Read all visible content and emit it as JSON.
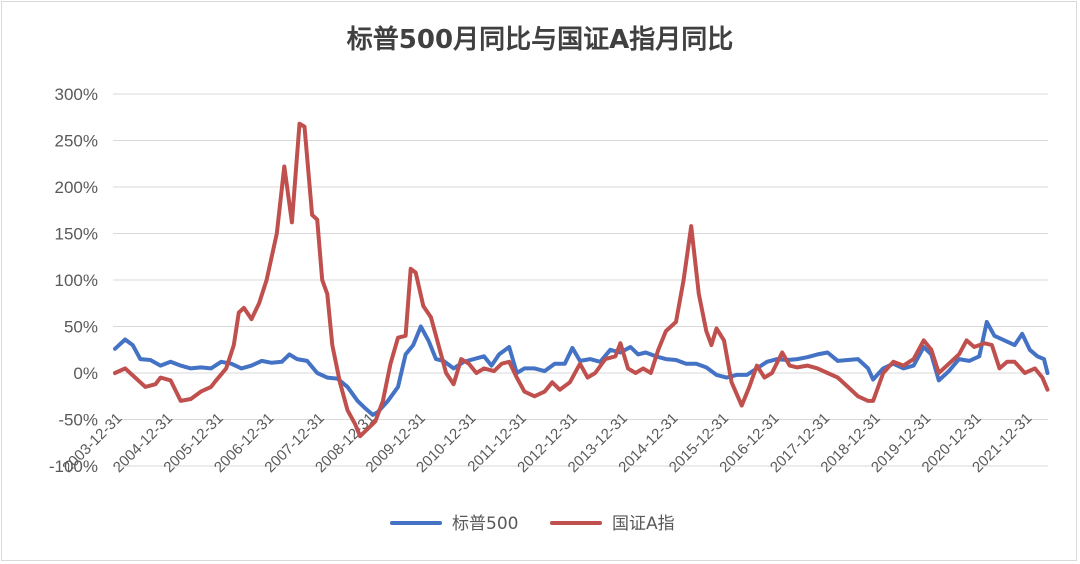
{
  "chart_data": {
    "type": "line",
    "title": "标普500月同比与国证A指月同比",
    "xlabel": "",
    "ylabel": "",
    "ylim": [
      -1.0,
      3.0
    ],
    "yticks": [
      -1.0,
      -0.5,
      0.0,
      0.5,
      1.0,
      1.5,
      2.0,
      2.5,
      3.0
    ],
    "ytick_labels": [
      "-100%",
      "-50%",
      "0%",
      "50%",
      "100%",
      "150%",
      "200%",
      "250%",
      "300%"
    ],
    "xlim": [
      2003.96,
      2022.46
    ],
    "x_tick_labels": [
      "2003-12-31",
      "2004-12-31",
      "2005-12-31",
      "2006-12-31",
      "2007-12-31",
      "2008-12-31",
      "2009-12-31",
      "2010-12-31",
      "2011-12-31",
      "2012-12-31",
      "2013-12-31",
      "2014-12-31",
      "2015-12-31",
      "2016-12-31",
      "2017-12-31",
      "2018-12-31",
      "2019-12-31",
      "2020-12-31",
      "2021-12-31"
    ],
    "grid": true,
    "legend_position": "bottom",
    "series": [
      {
        "name": "标普500",
        "color": "#4472C4",
        "points": [
          [
            2004.0,
            0.26
          ],
          [
            2004.2,
            0.36
          ],
          [
            2004.35,
            0.3
          ],
          [
            2004.5,
            0.15
          ],
          [
            2004.7,
            0.14
          ],
          [
            2004.9,
            0.08
          ],
          [
            2005.1,
            0.12
          ],
          [
            2005.3,
            0.08
          ],
          [
            2005.5,
            0.05
          ],
          [
            2005.7,
            0.06
          ],
          [
            2005.9,
            0.05
          ],
          [
            2006.1,
            0.12
          ],
          [
            2006.3,
            0.1
          ],
          [
            2006.5,
            0.05
          ],
          [
            2006.7,
            0.08
          ],
          [
            2006.9,
            0.13
          ],
          [
            2007.1,
            0.11
          ],
          [
            2007.3,
            0.12
          ],
          [
            2007.45,
            0.2
          ],
          [
            2007.6,
            0.15
          ],
          [
            2007.8,
            0.13
          ],
          [
            2008.0,
            0.0
          ],
          [
            2008.2,
            -0.05
          ],
          [
            2008.4,
            -0.06
          ],
          [
            2008.6,
            -0.15
          ],
          [
            2008.8,
            -0.3
          ],
          [
            2008.95,
            -0.38
          ],
          [
            2009.1,
            -0.45
          ],
          [
            2009.2,
            -0.42
          ],
          [
            2009.4,
            -0.3
          ],
          [
            2009.6,
            -0.15
          ],
          [
            2009.75,
            0.2
          ],
          [
            2009.9,
            0.3
          ],
          [
            2010.05,
            0.5
          ],
          [
            2010.2,
            0.35
          ],
          [
            2010.35,
            0.15
          ],
          [
            2010.5,
            0.13
          ],
          [
            2010.7,
            0.05
          ],
          [
            2010.9,
            0.12
          ],
          [
            2011.1,
            0.15
          ],
          [
            2011.3,
            0.18
          ],
          [
            2011.45,
            0.08
          ],
          [
            2011.6,
            0.2
          ],
          [
            2011.8,
            0.28
          ],
          [
            2011.95,
            0.0
          ],
          [
            2012.1,
            0.05
          ],
          [
            2012.3,
            0.05
          ],
          [
            2012.5,
            0.02
          ],
          [
            2012.7,
            0.1
          ],
          [
            2012.9,
            0.1
          ],
          [
            2013.05,
            0.27
          ],
          [
            2013.2,
            0.13
          ],
          [
            2013.4,
            0.15
          ],
          [
            2013.6,
            0.12
          ],
          [
            2013.8,
            0.25
          ],
          [
            2014.0,
            0.22
          ],
          [
            2014.2,
            0.28
          ],
          [
            2014.35,
            0.2
          ],
          [
            2014.5,
            0.22
          ],
          [
            2014.7,
            0.18
          ],
          [
            2014.9,
            0.15
          ],
          [
            2015.1,
            0.14
          ],
          [
            2015.3,
            0.1
          ],
          [
            2015.5,
            0.1
          ],
          [
            2015.7,
            0.06
          ],
          [
            2015.9,
            -0.02
          ],
          [
            2016.1,
            -0.05
          ],
          [
            2016.3,
            -0.02
          ],
          [
            2016.5,
            -0.02
          ],
          [
            2016.7,
            0.05
          ],
          [
            2016.9,
            0.12
          ],
          [
            2017.1,
            0.15
          ],
          [
            2017.3,
            0.14
          ],
          [
            2017.5,
            0.15
          ],
          [
            2017.7,
            0.17
          ],
          [
            2017.9,
            0.2
          ],
          [
            2018.1,
            0.22
          ],
          [
            2018.3,
            0.13
          ],
          [
            2018.5,
            0.14
          ],
          [
            2018.7,
            0.15
          ],
          [
            2018.9,
            0.05
          ],
          [
            2019.0,
            -0.07
          ],
          [
            2019.2,
            0.05
          ],
          [
            2019.4,
            0.1
          ],
          [
            2019.6,
            0.05
          ],
          [
            2019.8,
            0.08
          ],
          [
            2020.0,
            0.28
          ],
          [
            2020.15,
            0.2
          ],
          [
            2020.3,
            -0.08
          ],
          [
            2020.5,
            0.02
          ],
          [
            2020.7,
            0.15
          ],
          [
            2020.9,
            0.13
          ],
          [
            2021.1,
            0.18
          ],
          [
            2021.25,
            0.55
          ],
          [
            2021.4,
            0.4
          ],
          [
            2021.6,
            0.35
          ],
          [
            2021.8,
            0.3
          ],
          [
            2021.95,
            0.42
          ],
          [
            2022.1,
            0.25
          ],
          [
            2022.25,
            0.18
          ],
          [
            2022.38,
            0.15
          ],
          [
            2022.45,
            0.0
          ]
        ]
      },
      {
        "name": "国证A指",
        "color": "#C0504D",
        "points": [
          [
            2004.0,
            0.0
          ],
          [
            2004.2,
            0.05
          ],
          [
            2004.4,
            -0.05
          ],
          [
            2004.6,
            -0.15
          ],
          [
            2004.8,
            -0.12
          ],
          [
            2004.9,
            -0.05
          ],
          [
            2005.1,
            -0.08
          ],
          [
            2005.3,
            -0.3
          ],
          [
            2005.5,
            -0.28
          ],
          [
            2005.7,
            -0.2
          ],
          [
            2005.9,
            -0.15
          ],
          [
            2006.0,
            -0.08
          ],
          [
            2006.2,
            0.05
          ],
          [
            2006.35,
            0.3
          ],
          [
            2006.45,
            0.65
          ],
          [
            2006.55,
            0.7
          ],
          [
            2006.7,
            0.58
          ],
          [
            2006.85,
            0.75
          ],
          [
            2007.0,
            1.0
          ],
          [
            2007.2,
            1.5
          ],
          [
            2007.35,
            2.22
          ],
          [
            2007.5,
            1.62
          ],
          [
            2007.65,
            2.68
          ],
          [
            2007.75,
            2.65
          ],
          [
            2007.9,
            1.7
          ],
          [
            2008.0,
            1.65
          ],
          [
            2008.1,
            1.0
          ],
          [
            2008.2,
            0.85
          ],
          [
            2008.3,
            0.3
          ],
          [
            2008.45,
            -0.1
          ],
          [
            2008.6,
            -0.4
          ],
          [
            2008.75,
            -0.55
          ],
          [
            2008.85,
            -0.68
          ],
          [
            2009.0,
            -0.6
          ],
          [
            2009.15,
            -0.52
          ],
          [
            2009.3,
            -0.3
          ],
          [
            2009.45,
            0.1
          ],
          [
            2009.6,
            0.38
          ],
          [
            2009.75,
            0.4
          ],
          [
            2009.85,
            1.12
          ],
          [
            2009.95,
            1.08
          ],
          [
            2010.1,
            0.72
          ],
          [
            2010.25,
            0.6
          ],
          [
            2010.4,
            0.3
          ],
          [
            2010.55,
            0.0
          ],
          [
            2010.7,
            -0.12
          ],
          [
            2010.85,
            0.15
          ],
          [
            2011.0,
            0.1
          ],
          [
            2011.15,
            0.0
          ],
          [
            2011.3,
            0.05
          ],
          [
            2011.5,
            0.02
          ],
          [
            2011.65,
            0.1
          ],
          [
            2011.8,
            0.12
          ],
          [
            2011.95,
            -0.05
          ],
          [
            2012.1,
            -0.2
          ],
          [
            2012.3,
            -0.25
          ],
          [
            2012.5,
            -0.2
          ],
          [
            2012.65,
            -0.1
          ],
          [
            2012.8,
            -0.18
          ],
          [
            2013.0,
            -0.1
          ],
          [
            2013.2,
            0.1
          ],
          [
            2013.35,
            -0.05
          ],
          [
            2013.5,
            0.0
          ],
          [
            2013.7,
            0.15
          ],
          [
            2013.9,
            0.18
          ],
          [
            2014.0,
            0.32
          ],
          [
            2014.15,
            0.05
          ],
          [
            2014.3,
            0.0
          ],
          [
            2014.45,
            0.05
          ],
          [
            2014.6,
            0.0
          ],
          [
            2014.75,
            0.25
          ],
          [
            2014.9,
            0.45
          ],
          [
            2015.1,
            0.55
          ],
          [
            2015.25,
            1.0
          ],
          [
            2015.4,
            1.58
          ],
          [
            2015.55,
            0.85
          ],
          [
            2015.7,
            0.45
          ],
          [
            2015.8,
            0.3
          ],
          [
            2015.9,
            0.48
          ],
          [
            2016.05,
            0.35
          ],
          [
            2016.2,
            -0.1
          ],
          [
            2016.4,
            -0.35
          ],
          [
            2016.55,
            -0.15
          ],
          [
            2016.7,
            0.08
          ],
          [
            2016.85,
            -0.05
          ],
          [
            2017.0,
            0.0
          ],
          [
            2017.2,
            0.22
          ],
          [
            2017.35,
            0.08
          ],
          [
            2017.5,
            0.06
          ],
          [
            2017.7,
            0.08
          ],
          [
            2017.9,
            0.05
          ],
          [
            2018.1,
            0.0
          ],
          [
            2018.3,
            -0.05
          ],
          [
            2018.5,
            -0.15
          ],
          [
            2018.7,
            -0.25
          ],
          [
            2018.9,
            -0.3
          ],
          [
            2019.0,
            -0.3
          ],
          [
            2019.2,
            0.0
          ],
          [
            2019.4,
            0.12
          ],
          [
            2019.6,
            0.08
          ],
          [
            2019.8,
            0.15
          ],
          [
            2020.0,
            0.35
          ],
          [
            2020.15,
            0.25
          ],
          [
            2020.3,
            0.0
          ],
          [
            2020.5,
            0.1
          ],
          [
            2020.7,
            0.2
          ],
          [
            2020.85,
            0.35
          ],
          [
            2021.0,
            0.28
          ],
          [
            2021.2,
            0.32
          ],
          [
            2021.35,
            0.3
          ],
          [
            2021.5,
            0.05
          ],
          [
            2021.65,
            0.12
          ],
          [
            2021.8,
            0.12
          ],
          [
            2022.0,
            0.0
          ],
          [
            2022.2,
            0.05
          ],
          [
            2022.35,
            -0.05
          ],
          [
            2022.45,
            -0.18
          ]
        ]
      }
    ]
  }
}
